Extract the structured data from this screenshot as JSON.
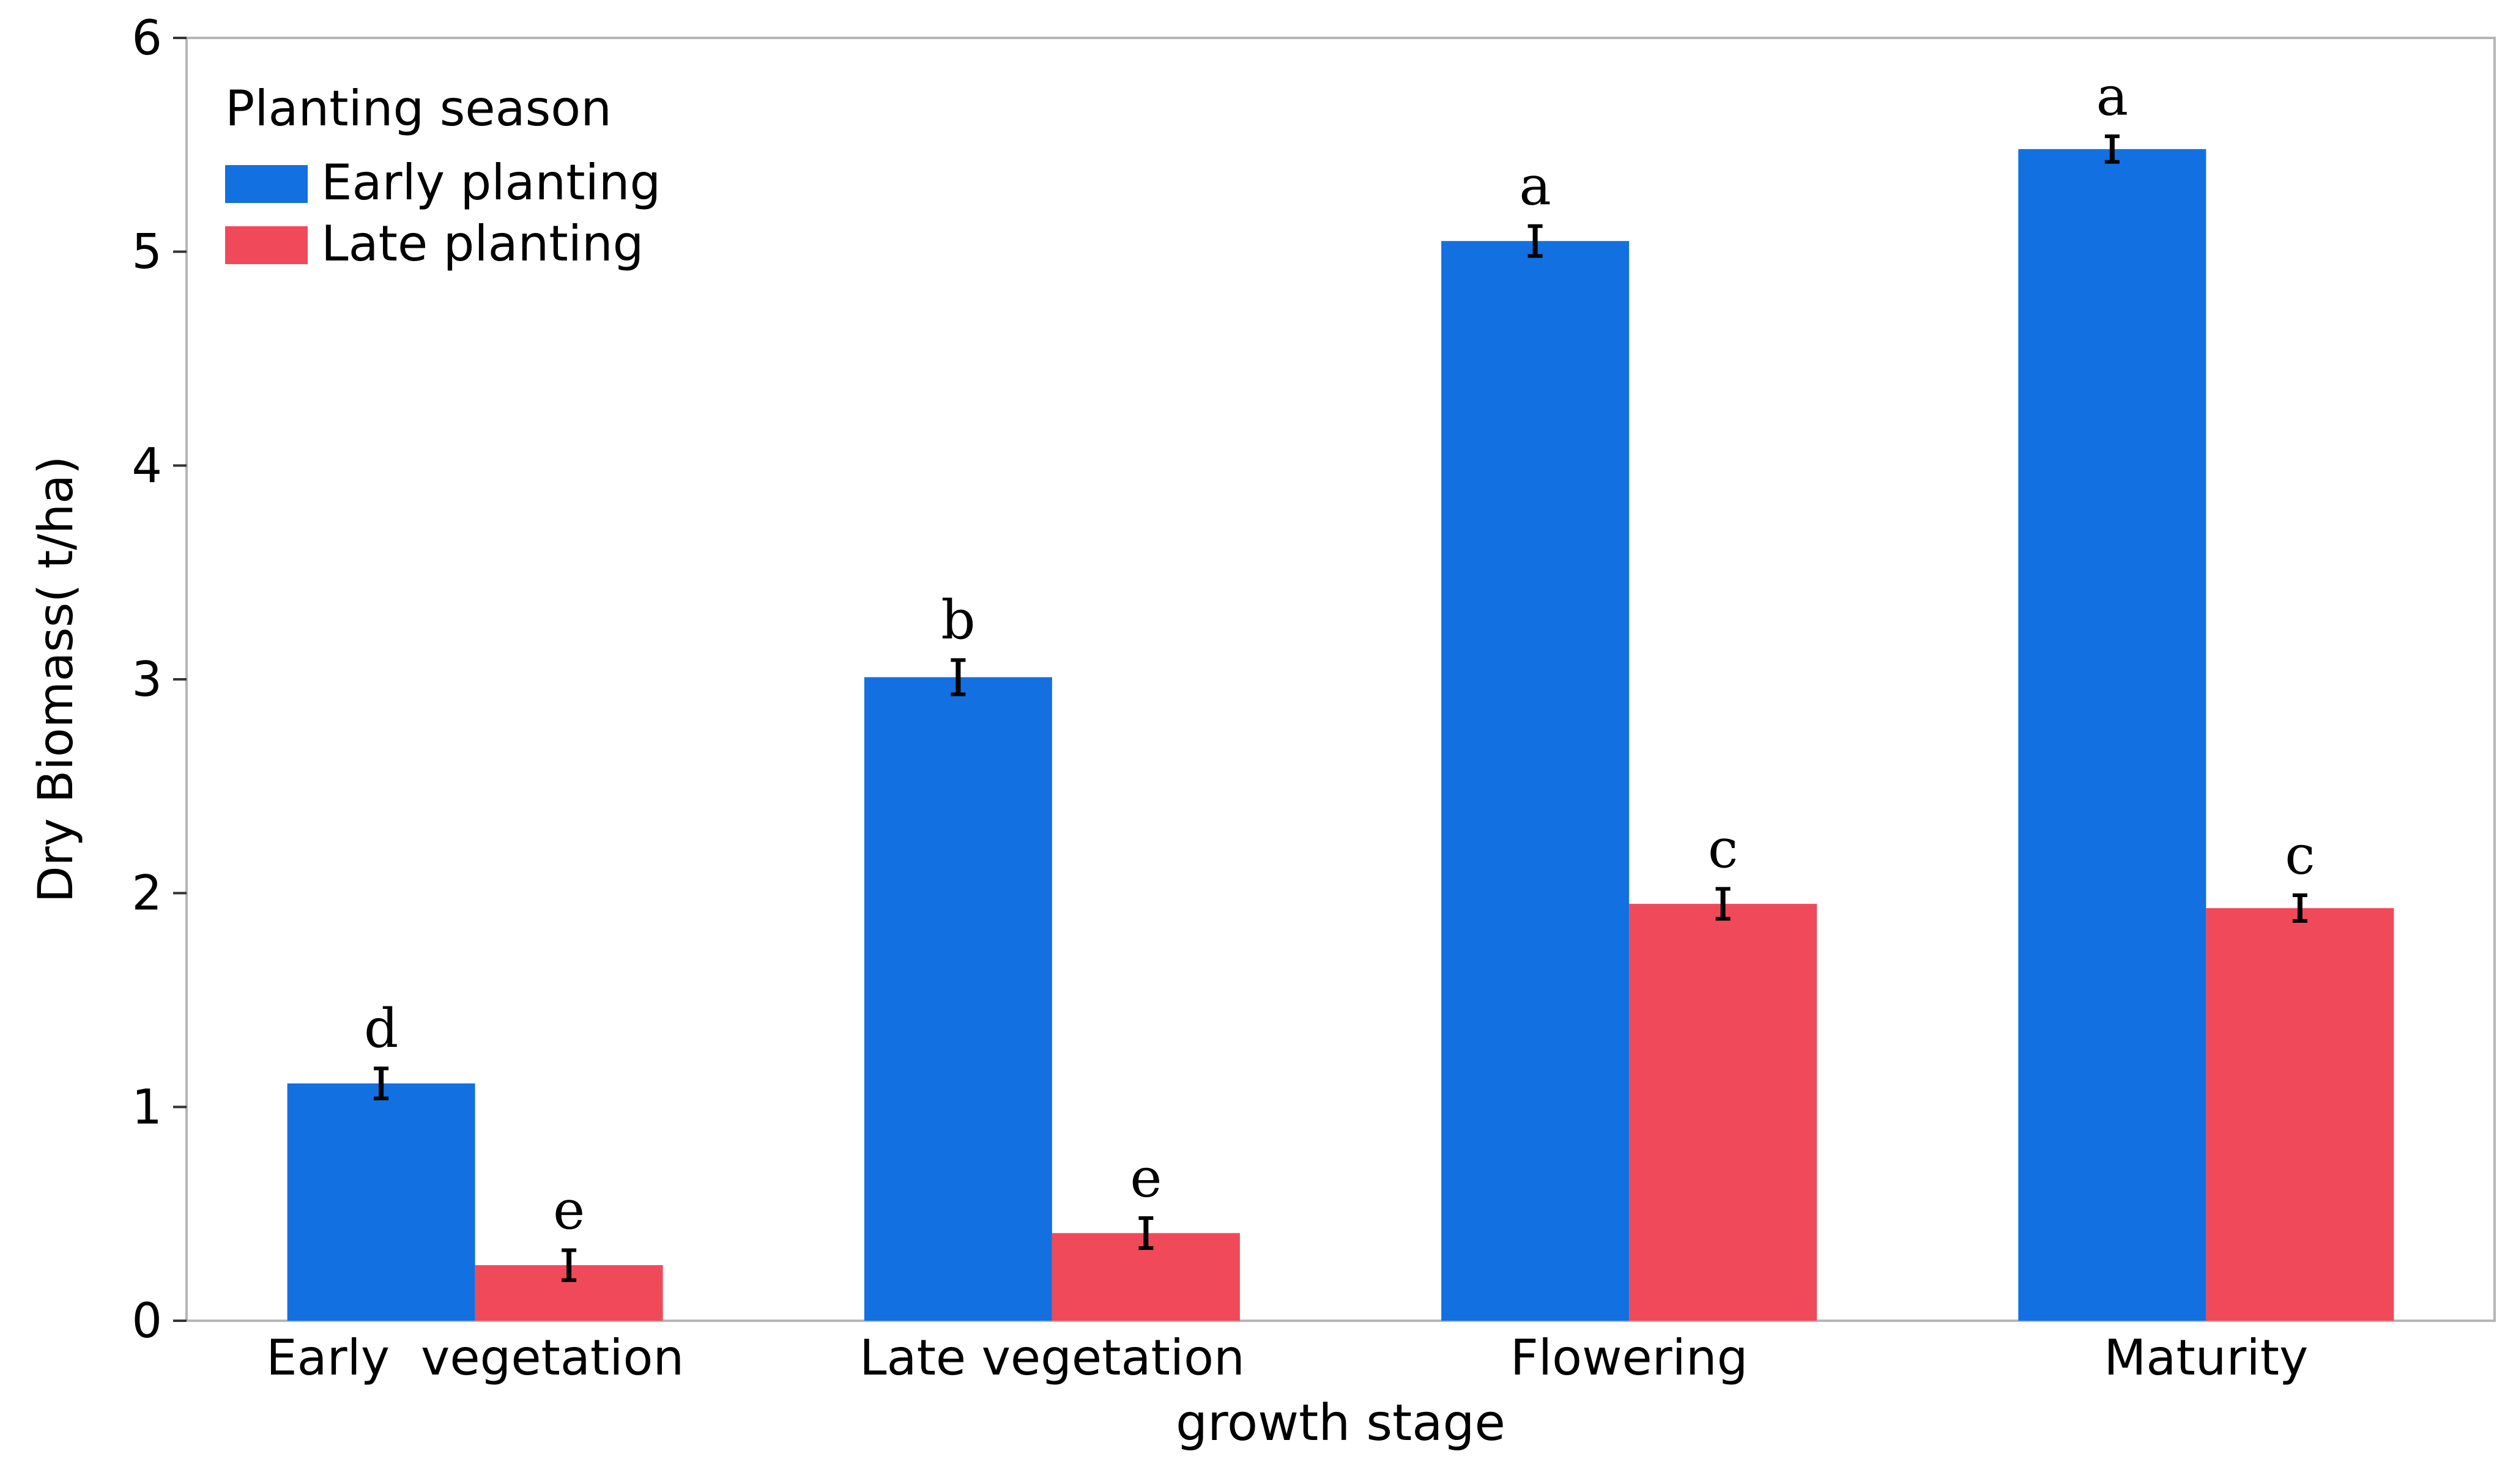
{
  "chart_data": {
    "type": "bar",
    "xlabel": "growth stage",
    "ylabel": "Dry Biomass( t/ha)",
    "ylim": [
      0,
      6
    ],
    "yticks": [
      "0",
      "1",
      "2",
      "3",
      "4",
      "5",
      "6"
    ],
    "categories": [
      "Early  vegetation",
      "Late vegetation",
      "Flowering",
      "Maturity"
    ],
    "legend": {
      "title": "Planting season",
      "placement": "top-left"
    },
    "grid": false,
    "series": [
      {
        "name": "Early planting",
        "color": "#1270E0",
        "values": [
          1.11,
          3.01,
          5.05,
          5.48
        ],
        "errors": [
          0.07,
          0.08,
          0.07,
          0.06
        ],
        "significance": [
          "d",
          "b",
          "a",
          "a"
        ]
      },
      {
        "name": "Late planting",
        "color": "#F04A5A",
        "values": [
          0.26,
          0.41,
          1.95,
          1.93
        ],
        "errors": [
          0.07,
          0.07,
          0.07,
          0.06
        ],
        "significance": [
          "e",
          "e",
          "c",
          "c"
        ]
      }
    ]
  }
}
